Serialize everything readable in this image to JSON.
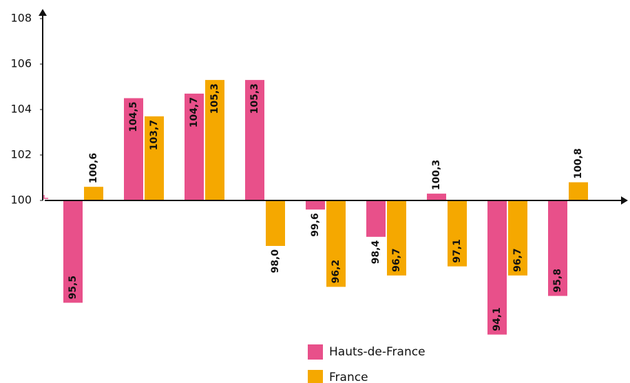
{
  "chart_data": {
    "type": "bar",
    "categories": [
      null,
      null,
      null,
      null,
      null,
      null,
      null,
      null,
      null
    ],
    "series": [
      {
        "name": "Hauts-de-France",
        "color": "#e8508a",
        "values": [
          95.5,
          104.5,
          104.7,
          105.3,
          99.6,
          98.4,
          100.3,
          94.1,
          95.8
        ],
        "value_labels": [
          "95,5",
          "104,5",
          "104,7",
          "105,3",
          "99,6",
          "98,4",
          "100,3",
          "94,1",
          "95,8"
        ]
      },
      {
        "name": "France",
        "color": "#f5a800",
        "values": [
          100.6,
          103.7,
          105.3,
          98.0,
          96.2,
          96.7,
          97.1,
          96.7,
          100.8
        ],
        "value_labels": [
          "100,6",
          "103,7",
          "105,3",
          "98,0",
          "96,2",
          "96,7",
          "97,1",
          "96,7",
          "100,8"
        ]
      }
    ],
    "baseline": 100,
    "ylim": [
      94,
      108
    ],
    "yticks": [
      100,
      102,
      104,
      106,
      108
    ]
  }
}
